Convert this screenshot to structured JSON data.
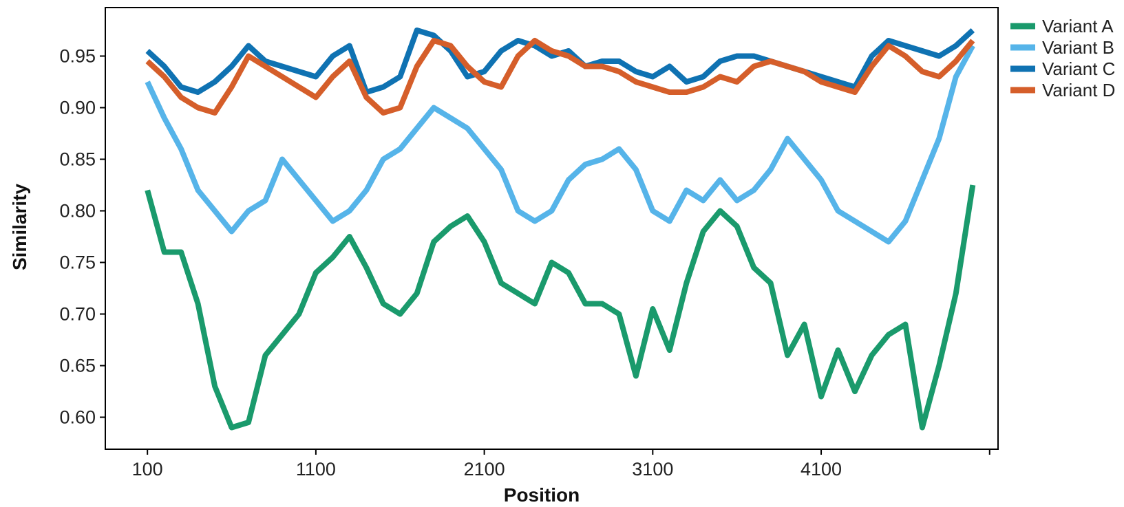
{
  "chart_data": {
    "type": "line",
    "xlabel": "Position",
    "ylabel": "Similarity",
    "xlim": [
      -150,
      5150
    ],
    "ylim": [
      0.569,
      0.997
    ],
    "xticks": [
      100,
      1100,
      2100,
      3100,
      4100,
      5100
    ],
    "xtick_labels": [
      "100",
      "1100",
      "2100",
      "3100",
      "4100",
      ""
    ],
    "yticks": [
      0.6,
      0.65,
      0.7,
      0.75,
      0.8,
      0.85,
      0.9,
      0.95
    ],
    "ytick_labels": [
      "0.60",
      "0.65",
      "0.70",
      "0.75",
      "0.80",
      "0.85",
      "0.90",
      "0.95"
    ],
    "grid": false,
    "legend_position": "outside top-right",
    "series": [
      {
        "name": "Variant A",
        "color": "#1a9a6c",
        "points": [
          [
            100,
            0.82
          ],
          [
            200,
            0.76
          ],
          [
            300,
            0.76
          ],
          [
            400,
            0.71
          ],
          [
            500,
            0.63
          ],
          [
            600,
            0.59
          ],
          [
            700,
            0.595
          ],
          [
            800,
            0.66
          ],
          [
            900,
            0.68
          ],
          [
            1000,
            0.7
          ],
          [
            1100,
            0.74
          ],
          [
            1200,
            0.755
          ],
          [
            1300,
            0.775
          ],
          [
            1400,
            0.745
          ],
          [
            1500,
            0.71
          ],
          [
            1600,
            0.7
          ],
          [
            1700,
            0.72
          ],
          [
            1800,
            0.77
          ],
          [
            1900,
            0.785
          ],
          [
            2000,
            0.795
          ],
          [
            2100,
            0.77
          ],
          [
            2200,
            0.73
          ],
          [
            2300,
            0.72
          ],
          [
            2400,
            0.71
          ],
          [
            2500,
            0.75
          ],
          [
            2600,
            0.74
          ],
          [
            2700,
            0.71
          ],
          [
            2800,
            0.71
          ],
          [
            2900,
            0.7
          ],
          [
            3000,
            0.64
          ],
          [
            3100,
            0.705
          ],
          [
            3200,
            0.665
          ],
          [
            3300,
            0.73
          ],
          [
            3400,
            0.78
          ],
          [
            3500,
            0.8
          ],
          [
            3600,
            0.785
          ],
          [
            3700,
            0.745
          ],
          [
            3800,
            0.73
          ],
          [
            3900,
            0.66
          ],
          [
            4000,
            0.69
          ],
          [
            4100,
            0.62
          ],
          [
            4200,
            0.665
          ],
          [
            4300,
            0.625
          ],
          [
            4400,
            0.66
          ],
          [
            4500,
            0.68
          ],
          [
            4600,
            0.69
          ],
          [
            4700,
            0.59
          ],
          [
            4800,
            0.65
          ],
          [
            4900,
            0.72
          ],
          [
            5000,
            0.825
          ]
        ]
      },
      {
        "name": "Variant B",
        "color": "#56b4e9",
        "points": [
          [
            100,
            0.925
          ],
          [
            200,
            0.89
          ],
          [
            300,
            0.86
          ],
          [
            400,
            0.82
          ],
          [
            500,
            0.8
          ],
          [
            600,
            0.78
          ],
          [
            700,
            0.8
          ],
          [
            800,
            0.81
          ],
          [
            900,
            0.85
          ],
          [
            1000,
            0.83
          ],
          [
            1100,
            0.81
          ],
          [
            1200,
            0.79
          ],
          [
            1300,
            0.8
          ],
          [
            1400,
            0.82
          ],
          [
            1500,
            0.85
          ],
          [
            1600,
            0.86
          ],
          [
            1700,
            0.88
          ],
          [
            1800,
            0.9
          ],
          [
            1900,
            0.89
          ],
          [
            2000,
            0.88
          ],
          [
            2100,
            0.86
          ],
          [
            2200,
            0.84
          ],
          [
            2300,
            0.8
          ],
          [
            2400,
            0.79
          ],
          [
            2500,
            0.8
          ],
          [
            2600,
            0.83
          ],
          [
            2700,
            0.845
          ],
          [
            2800,
            0.85
          ],
          [
            2900,
            0.86
          ],
          [
            3000,
            0.84
          ],
          [
            3100,
            0.8
          ],
          [
            3200,
            0.79
          ],
          [
            3300,
            0.82
          ],
          [
            3400,
            0.81
          ],
          [
            3500,
            0.83
          ],
          [
            3600,
            0.81
          ],
          [
            3700,
            0.82
          ],
          [
            3800,
            0.84
          ],
          [
            3900,
            0.87
          ],
          [
            4000,
            0.85
          ],
          [
            4100,
            0.83
          ],
          [
            4200,
            0.8
          ],
          [
            4300,
            0.79
          ],
          [
            4400,
            0.78
          ],
          [
            4500,
            0.77
          ],
          [
            4600,
            0.79
          ],
          [
            4700,
            0.83
          ],
          [
            4800,
            0.87
          ],
          [
            4900,
            0.93
          ],
          [
            5000,
            0.96
          ]
        ]
      },
      {
        "name": "Variant C",
        "color": "#0f72b2",
        "points": [
          [
            100,
            0.955
          ],
          [
            200,
            0.94
          ],
          [
            300,
            0.92
          ],
          [
            400,
            0.915
          ],
          [
            500,
            0.925
          ],
          [
            600,
            0.94
          ],
          [
            700,
            0.96
          ],
          [
            800,
            0.945
          ],
          [
            900,
            0.94
          ],
          [
            1000,
            0.935
          ],
          [
            1100,
            0.93
          ],
          [
            1200,
            0.95
          ],
          [
            1300,
            0.96
          ],
          [
            1400,
            0.915
          ],
          [
            1500,
            0.92
          ],
          [
            1600,
            0.93
          ],
          [
            1700,
            0.975
          ],
          [
            1800,
            0.97
          ],
          [
            1900,
            0.955
          ],
          [
            2000,
            0.93
          ],
          [
            2100,
            0.935
          ],
          [
            2200,
            0.955
          ],
          [
            2300,
            0.965
          ],
          [
            2400,
            0.96
          ],
          [
            2500,
            0.95
          ],
          [
            2600,
            0.955
          ],
          [
            2700,
            0.94
          ],
          [
            2800,
            0.945
          ],
          [
            2900,
            0.945
          ],
          [
            3000,
            0.935
          ],
          [
            3100,
            0.93
          ],
          [
            3200,
            0.94
          ],
          [
            3300,
            0.925
          ],
          [
            3400,
            0.93
          ],
          [
            3500,
            0.945
          ],
          [
            3600,
            0.95
          ],
          [
            3700,
            0.95
          ],
          [
            3800,
            0.945
          ],
          [
            3900,
            0.94
          ],
          [
            4000,
            0.935
          ],
          [
            4100,
            0.93
          ],
          [
            4200,
            0.925
          ],
          [
            4300,
            0.92
          ],
          [
            4400,
            0.95
          ],
          [
            4500,
            0.965
          ],
          [
            4600,
            0.96
          ],
          [
            4700,
            0.955
          ],
          [
            4800,
            0.95
          ],
          [
            4900,
            0.96
          ],
          [
            5000,
            0.975
          ]
        ]
      },
      {
        "name": "Variant D",
        "color": "#d55e2a",
        "points": [
          [
            100,
            0.945
          ],
          [
            200,
            0.93
          ],
          [
            300,
            0.91
          ],
          [
            400,
            0.9
          ],
          [
            500,
            0.895
          ],
          [
            600,
            0.92
          ],
          [
            700,
            0.95
          ],
          [
            800,
            0.94
          ],
          [
            900,
            0.93
          ],
          [
            1000,
            0.92
          ],
          [
            1100,
            0.91
          ],
          [
            1200,
            0.93
          ],
          [
            1300,
            0.945
          ],
          [
            1400,
            0.91
          ],
          [
            1500,
            0.895
          ],
          [
            1600,
            0.9
          ],
          [
            1700,
            0.94
          ],
          [
            1800,
            0.965
          ],
          [
            1900,
            0.96
          ],
          [
            2000,
            0.94
          ],
          [
            2100,
            0.925
          ],
          [
            2200,
            0.92
          ],
          [
            2300,
            0.95
          ],
          [
            2400,
            0.965
          ],
          [
            2500,
            0.955
          ],
          [
            2600,
            0.95
          ],
          [
            2700,
            0.94
          ],
          [
            2800,
            0.94
          ],
          [
            2900,
            0.935
          ],
          [
            3000,
            0.925
          ],
          [
            3100,
            0.92
          ],
          [
            3200,
            0.915
          ],
          [
            3300,
            0.915
          ],
          [
            3400,
            0.92
          ],
          [
            3500,
            0.93
          ],
          [
            3600,
            0.925
          ],
          [
            3700,
            0.94
          ],
          [
            3800,
            0.945
          ],
          [
            3900,
            0.94
          ],
          [
            4000,
            0.935
          ],
          [
            4100,
            0.925
          ],
          [
            4200,
            0.92
          ],
          [
            4300,
            0.915
          ],
          [
            4400,
            0.94
          ],
          [
            4500,
            0.96
          ],
          [
            4600,
            0.95
          ],
          [
            4700,
            0.935
          ],
          [
            4800,
            0.93
          ],
          [
            4900,
            0.945
          ],
          [
            5000,
            0.965
          ]
        ]
      }
    ]
  }
}
